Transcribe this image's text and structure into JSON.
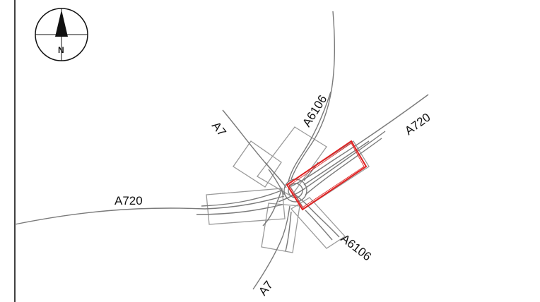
{
  "north_arrow": {
    "label": "N",
    "icon": "north-arrow-icon"
  },
  "roads": {
    "a720_west": "A720",
    "a720_east": "A720",
    "a7_north": "A7",
    "a7_south": "A7",
    "a6106_north": "A6106",
    "a6106_south": "A6106"
  },
  "colors": {
    "road_line": "#7a7a7a",
    "scheme_box": "#9a9a9a",
    "highlight_box": "#e02020",
    "frame": "#000000"
  }
}
